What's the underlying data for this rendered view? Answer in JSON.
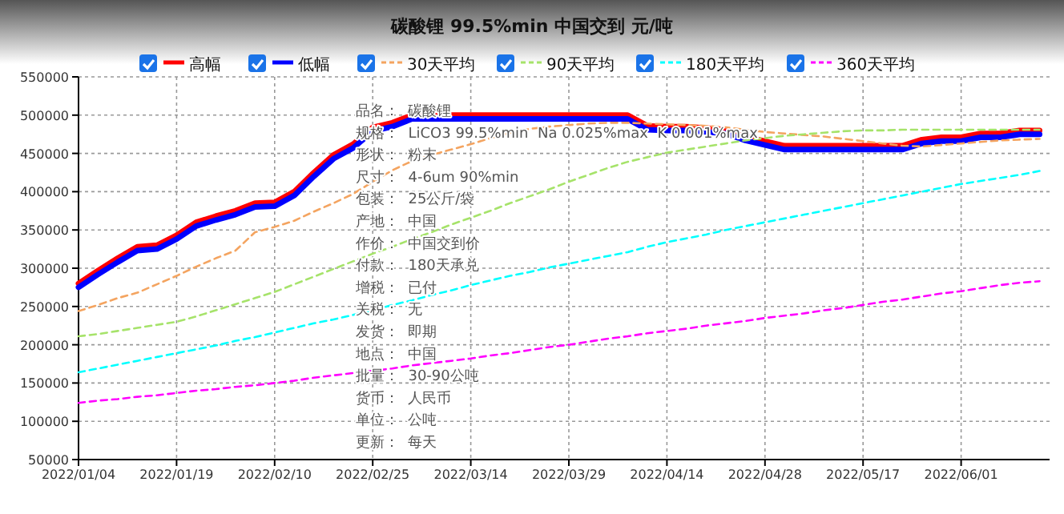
{
  "chart_data": {
    "type": "line",
    "title": "碳酸锂 99.5%min 中国交到 元/吨",
    "categories": [
      "2022/01/04",
      null,
      null,
      null,
      null,
      "2022/01/19",
      null,
      null,
      null,
      null,
      "2022/02/10",
      null,
      null,
      null,
      null,
      "2022/02/25",
      null,
      null,
      null,
      null,
      "2022/03/14",
      null,
      null,
      null,
      null,
      "2022/03/29",
      null,
      null,
      null,
      null,
      "2022/04/14",
      null,
      null,
      null,
      null,
      "2022/04/28",
      null,
      null,
      null,
      null,
      "2022/05/17",
      null,
      null,
      null,
      null,
      "2022/06/01",
      null,
      null,
      null,
      null
    ],
    "series": [
      {
        "name": "高幅",
        "color": "#ff0000",
        "line_style": "solid",
        "values": [
          280000,
          297000,
          313000,
          328000,
          330000,
          343000,
          360000,
          368000,
          375000,
          385000,
          386000,
          400000,
          425000,
          448000,
          462000,
          484000,
          490000,
          500000,
          500000,
          500000,
          500000,
          500000,
          500000,
          500000,
          500000,
          500000,
          500000,
          500000,
          500000,
          486000,
          485000,
          485000,
          483000,
          481000,
          472000,
          466000,
          460000,
          460000,
          460000,
          460000,
          460000,
          460000,
          460000,
          468000,
          471000,
          471000,
          476000,
          476000,
          480000,
          480000
        ]
      },
      {
        "name": "低幅",
        "color": "#0000ff",
        "line_style": "solid",
        "values": [
          275000,
          292000,
          308000,
          323000,
          325000,
          338000,
          355000,
          363000,
          370000,
          380000,
          381000,
          395000,
          420000,
          443000,
          457000,
          479000,
          485000,
          495000,
          495000,
          495000,
          495000,
          495000,
          495000,
          495000,
          495000,
          495000,
          495000,
          495000,
          495000,
          481000,
          480000,
          480000,
          478000,
          476000,
          467000,
          461000,
          455000,
          455000,
          455000,
          455000,
          455000,
          455000,
          455000,
          463000,
          466000,
          466000,
          471000,
          471000,
          475000,
          475000
        ]
      },
      {
        "name": "30天平均",
        "color": "#f4a460",
        "line_style": "dashed",
        "values": [
          244000,
          252000,
          261000,
          268000,
          279000,
          290000,
          302000,
          313000,
          323000,
          347000,
          354000,
          362000,
          374000,
          385000,
          397000,
          413000,
          428000,
          440000,
          448000,
          455000,
          462000,
          470000,
          477000,
          482000,
          485000,
          487000,
          489000,
          490000,
          490000,
          489000,
          488000,
          487000,
          486000,
          484000,
          481000,
          478000,
          476000,
          474000,
          472000,
          469000,
          466000,
          463000,
          460000,
          459000,
          461000,
          463000,
          465000,
          467000,
          468000,
          469000
        ]
      },
      {
        "name": "90天平均",
        "color": "#a6e36a",
        "line_style": "dashed",
        "values": [
          211000,
          214000,
          218000,
          222000,
          226000,
          230000,
          237000,
          245000,
          253000,
          261000,
          269000,
          279000,
          289000,
          299000,
          309000,
          319000,
          328000,
          338000,
          347000,
          357000,
          366000,
          375000,
          385000,
          394000,
          403000,
          413000,
          422000,
          431000,
          439000,
          445000,
          451000,
          455000,
          459000,
          463000,
          467000,
          470000,
          473000,
          475000,
          477000,
          479000,
          480000,
          480000,
          481000,
          481000,
          481000,
          481000,
          481000,
          481000,
          481000,
          481000
        ]
      },
      {
        "name": "180天平均",
        "color": "#00ffff",
        "line_style": "dashed",
        "values": [
          164000,
          169000,
          174000,
          179000,
          184000,
          189000,
          194000,
          199000,
          205000,
          210000,
          216000,
          222000,
          228000,
          233000,
          239000,
          245000,
          252000,
          258000,
          265000,
          271000,
          278000,
          284000,
          290000,
          295000,
          301000,
          306000,
          311000,
          316000,
          321000,
          328000,
          334000,
          339000,
          344000,
          350000,
          355000,
          360000,
          365000,
          370000,
          375000,
          380000,
          385000,
          390000,
          395000,
          400000,
          405000,
          410000,
          414000,
          418000,
          422000,
          427000
        ]
      },
      {
        "name": "360天平均",
        "color": "#ff00ff",
        "line_style": "dashed",
        "values": [
          124000,
          127000,
          129000,
          132000,
          134000,
          137000,
          140000,
          142000,
          145000,
          147000,
          150000,
          153000,
          157000,
          160000,
          163000,
          166000,
          169000,
          173000,
          176000,
          179000,
          182000,
          186000,
          189000,
          193000,
          197000,
          200000,
          204000,
          208000,
          211000,
          215000,
          218000,
          221000,
          225000,
          228000,
          231000,
          235000,
          238000,
          241000,
          245000,
          248000,
          252000,
          256000,
          259000,
          263000,
          267000,
          270000,
          274000,
          278000,
          281000,
          283000
        ]
      }
    ],
    "ylim": [
      50000,
      550000
    ],
    "yticks": [
      50000,
      100000,
      150000,
      200000,
      250000,
      300000,
      350000,
      400000,
      450000,
      500000,
      550000
    ],
    "grid": true,
    "legend": "top",
    "marker": "none",
    "annotations": [
      "品名：  碳酸锂",
      "规格：  LiCO3 99.5%min  Na 0.025%max  K 0.001%max",
      "形状：  粉末",
      "尺寸：  4-6um 90%min",
      "包装：  25公斤/袋",
      "产地：  中国",
      "作价：  中国交到价",
      "付款：  180天承兑",
      "增税：  已付",
      "关税：  无",
      "发货：  即期",
      "地点：  中国",
      "批量：  30-90公吨",
      "货币：  人民币",
      "单位：  公吨",
      "更新：  每天"
    ]
  }
}
